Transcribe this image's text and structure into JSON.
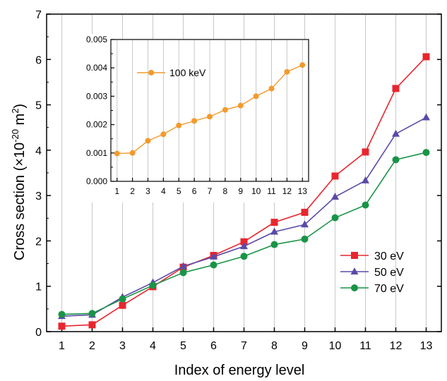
{
  "chart_data": [
    {
      "type": "line",
      "xlabel": "Index of energy level",
      "ylabel_main": "Cross section (×10",
      "ylabel_exp": "-20",
      "ylabel_unit": " m",
      "ylabel_unit_exp": "2",
      "ylabel_close": ")",
      "x": [
        1,
        2,
        3,
        4,
        5,
        6,
        7,
        8,
        9,
        10,
        11,
        12,
        13
      ],
      "x_tick_labels": [
        "1",
        "2",
        "3",
        "4",
        "5",
        "6",
        "7",
        "8",
        "9",
        "10",
        "11",
        "12",
        "13"
      ],
      "ylim": [
        0,
        7
      ],
      "y_ticks": [
        0,
        1,
        2,
        3,
        4,
        5,
        6,
        7
      ],
      "y_tick_labels": [
        "0",
        "1",
        "2",
        "3",
        "4",
        "5",
        "6",
        "7"
      ],
      "grid": "vertical",
      "legend_position": "bottom-right",
      "series": [
        {
          "name": "30 eV",
          "color": "#e8262e",
          "marker": "square",
          "values": [
            0.12,
            0.15,
            0.58,
            0.99,
            1.42,
            1.68,
            1.98,
            2.41,
            2.63,
            3.43,
            3.96,
            5.36,
            6.06
          ]
        },
        {
          "name": "50 eV",
          "color": "#5b4aa8",
          "marker": "triangle",
          "values": [
            0.34,
            0.37,
            0.76,
            1.08,
            1.44,
            1.65,
            1.88,
            2.2,
            2.36,
            2.97,
            3.33,
            4.36,
            4.72
          ]
        },
        {
          "name": "70 eV",
          "color": "#199447",
          "marker": "circle",
          "values": [
            0.38,
            0.4,
            0.72,
            1.02,
            1.3,
            1.47,
            1.66,
            1.92,
            2.04,
            2.51,
            2.79,
            3.79,
            3.95
          ]
        }
      ]
    },
    {
      "type": "line",
      "inset": true,
      "x": [
        1,
        2,
        3,
        4,
        5,
        6,
        7,
        8,
        9,
        10,
        11,
        12,
        13
      ],
      "x_tick_labels": [
        "1",
        "2",
        "3",
        "4",
        "5",
        "6",
        "7",
        "8",
        "9",
        "10",
        "11",
        "12",
        "13"
      ],
      "ylim": [
        0,
        0.005
      ],
      "y_ticks": [
        0,
        0.001,
        0.002,
        0.003,
        0.004,
        0.005
      ],
      "y_tick_labels": [
        "0.000",
        "0.001",
        "0.002",
        "0.003",
        "0.004",
        "0.005"
      ],
      "grid": "vertical",
      "legend_position": "top-left",
      "series": [
        {
          "name": "100 keV",
          "color": "#f39a2c",
          "marker": "circle",
          "values": [
            0.00098,
            0.001,
            0.00143,
            0.00166,
            0.00197,
            0.00213,
            0.00228,
            0.00252,
            0.00267,
            0.003,
            0.00327,
            0.00386,
            0.0041
          ]
        }
      ]
    }
  ]
}
